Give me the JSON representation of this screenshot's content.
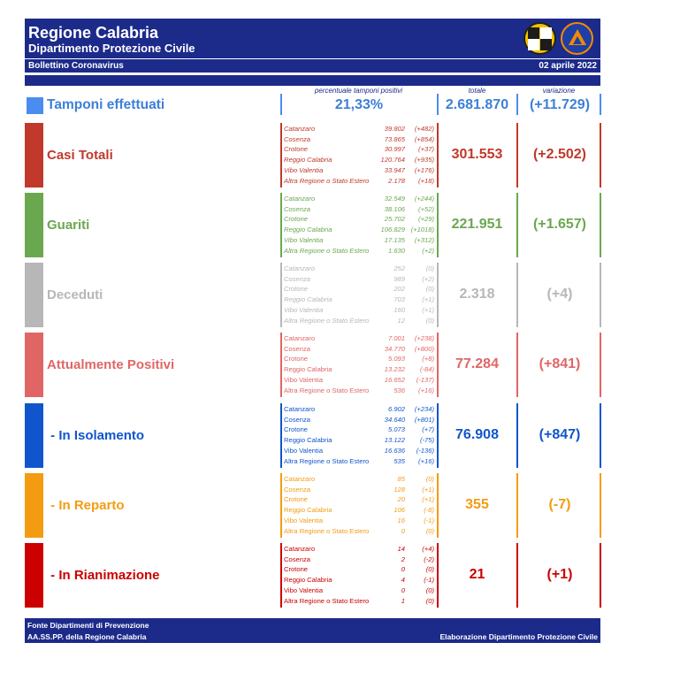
{
  "header": {
    "title": "Regione Calabria",
    "subtitle": "Dipartimento Protezione Civile",
    "bulletin": "Bollettino Coronavirus",
    "date": "02 aprile 2022",
    "logo_seal_text": "PROTEZIONE CIVILE"
  },
  "columns": {
    "positivity": "percentuale tamponi positivi",
    "total": "totale",
    "variation": "variazione"
  },
  "tamponi": {
    "label": "Tamponi effettuati",
    "positivity": "21,33%",
    "total": "2.681.870",
    "variation": "(+11.729)",
    "color": "#4a8cf0"
  },
  "rows": [
    {
      "label": "Casi Totali",
      "color": "#c0392b",
      "total": "301.553",
      "variation": "(+2.502)",
      "provinces": [
        {
          "name": "Catanzaro",
          "value": "39.802",
          "var": "(+482)"
        },
        {
          "name": "Cosenza",
          "value": "73.865",
          "var": "(+854)"
        },
        {
          "name": "Crotone",
          "value": "30.997",
          "var": "(+37)"
        },
        {
          "name": "Reggio Calabria",
          "value": "120.764",
          "var": "(+935)"
        },
        {
          "name": "Vibo Valentia",
          "value": "33.947",
          "var": "(+176)"
        },
        {
          "name": "Altra Regione o Stato Estero",
          "value": "2.178",
          "var": "(+18)"
        }
      ]
    },
    {
      "label": "Guariti",
      "color": "#6aa84f",
      "total": "221.951",
      "variation": "(+1.657)",
      "provinces": [
        {
          "name": "Catanzaro",
          "value": "32.549",
          "var": "(+244)"
        },
        {
          "name": "Cosenza",
          "value": "38.106",
          "var": "(+52)"
        },
        {
          "name": "Crotone",
          "value": "25.702",
          "var": "(+29)"
        },
        {
          "name": "Reggio Calabria",
          "value": "106.829",
          "var": "(+1018)"
        },
        {
          "name": "Vibo Valentia",
          "value": "17.135",
          "var": "(+312)"
        },
        {
          "name": "Altra Regione o Stato Estero",
          "value": "1.630",
          "var": "(+2)"
        }
      ]
    },
    {
      "label": "Deceduti",
      "color": "#b7b7b7",
      "total": "2.318",
      "variation": "(+4)",
      "provinces": [
        {
          "name": "Catanzaro",
          "value": "252",
          "var": "(0)"
        },
        {
          "name": "Cosenza",
          "value": "989",
          "var": "(+2)"
        },
        {
          "name": "Crotone",
          "value": "202",
          "var": "(0)"
        },
        {
          "name": "Reggio Calabria",
          "value": "703",
          "var": "(+1)"
        },
        {
          "name": "Vibo Valentia",
          "value": "160",
          "var": "(+1)"
        },
        {
          "name": "Altra Regione o Stato Estero",
          "value": "12",
          "var": "(0)"
        }
      ]
    },
    {
      "label": "Attualmente Positivi",
      "color": "#e06666",
      "total": "77.284",
      "variation": "(+841)",
      "provinces": [
        {
          "name": "Catanzaro",
          "value": "7.001",
          "var": "(+238)"
        },
        {
          "name": "Cosenza",
          "value": "34.770",
          "var": "(+800)"
        },
        {
          "name": "Crotone",
          "value": "5.093",
          "var": "(+8)"
        },
        {
          "name": "Reggio Calabria",
          "value": "13.232",
          "var": "(-84)"
        },
        {
          "name": "Vibo Valentia",
          "value": "16.652",
          "var": "(-137)"
        },
        {
          "name": "Altra Regione o Stato Estero",
          "value": "536",
          "var": "(+16)"
        }
      ]
    },
    {
      "label": " - In Isolamento",
      "color": "#1155cc",
      "total": "76.908",
      "variation": "(+847)",
      "provinces": [
        {
          "name": "Catanzaro",
          "value": "6.902",
          "var": "(+234)"
        },
        {
          "name": "Cosenza",
          "value": "34.640",
          "var": "(+801)"
        },
        {
          "name": "Crotone",
          "value": "5.073",
          "var": "(+7)"
        },
        {
          "name": "Reggio Calabria",
          "value": "13.122",
          "var": "(-75)"
        },
        {
          "name": "Vibo Valentia",
          "value": "16.636",
          "var": "(-136)"
        },
        {
          "name": "Altra Regione o Stato Estero",
          "value": "535",
          "var": "(+16)"
        }
      ]
    },
    {
      "label": " - In Reparto",
      "color": "#f39c12",
      "total": "355",
      "variation": "(-7)",
      "provinces": [
        {
          "name": "Catanzaro",
          "value": "85",
          "var": "(0)"
        },
        {
          "name": "Cosenza",
          "value": "128",
          "var": "(+1)"
        },
        {
          "name": "Crotone",
          "value": "20",
          "var": "(+1)"
        },
        {
          "name": "Reggio Calabria",
          "value": "106",
          "var": "(-8)"
        },
        {
          "name": "Vibo Valentia",
          "value": "16",
          "var": "(-1)"
        },
        {
          "name": "Altra Regione o Stato Estero",
          "value": "0",
          "var": "(0)"
        }
      ]
    },
    {
      "label": " - In Rianimazione",
      "color": "#cc0000",
      "total": "21",
      "variation": "(+1)",
      "provinces": [
        {
          "name": "Catanzaro",
          "value": "14",
          "var": "(+4)"
        },
        {
          "name": "Cosenza",
          "value": "2",
          "var": "(-2)"
        },
        {
          "name": "Crotone",
          "value": "0",
          "var": "(0)"
        },
        {
          "name": "Reggio Calabria",
          "value": "4",
          "var": "(-1)"
        },
        {
          "name": "Vibo Valentia",
          "value": "0",
          "var": "(0)"
        },
        {
          "name": "Altra Regione o Stato Estero",
          "value": "1",
          "var": "(0)"
        }
      ]
    }
  ],
  "footer": {
    "source_line1": "Fonte Dipartimenti di Prevenzione",
    "source_line2": "AA.SS.PP.  della Regione Calabria",
    "credit": "Elaborazione Dipartimento Protezione Civile"
  }
}
